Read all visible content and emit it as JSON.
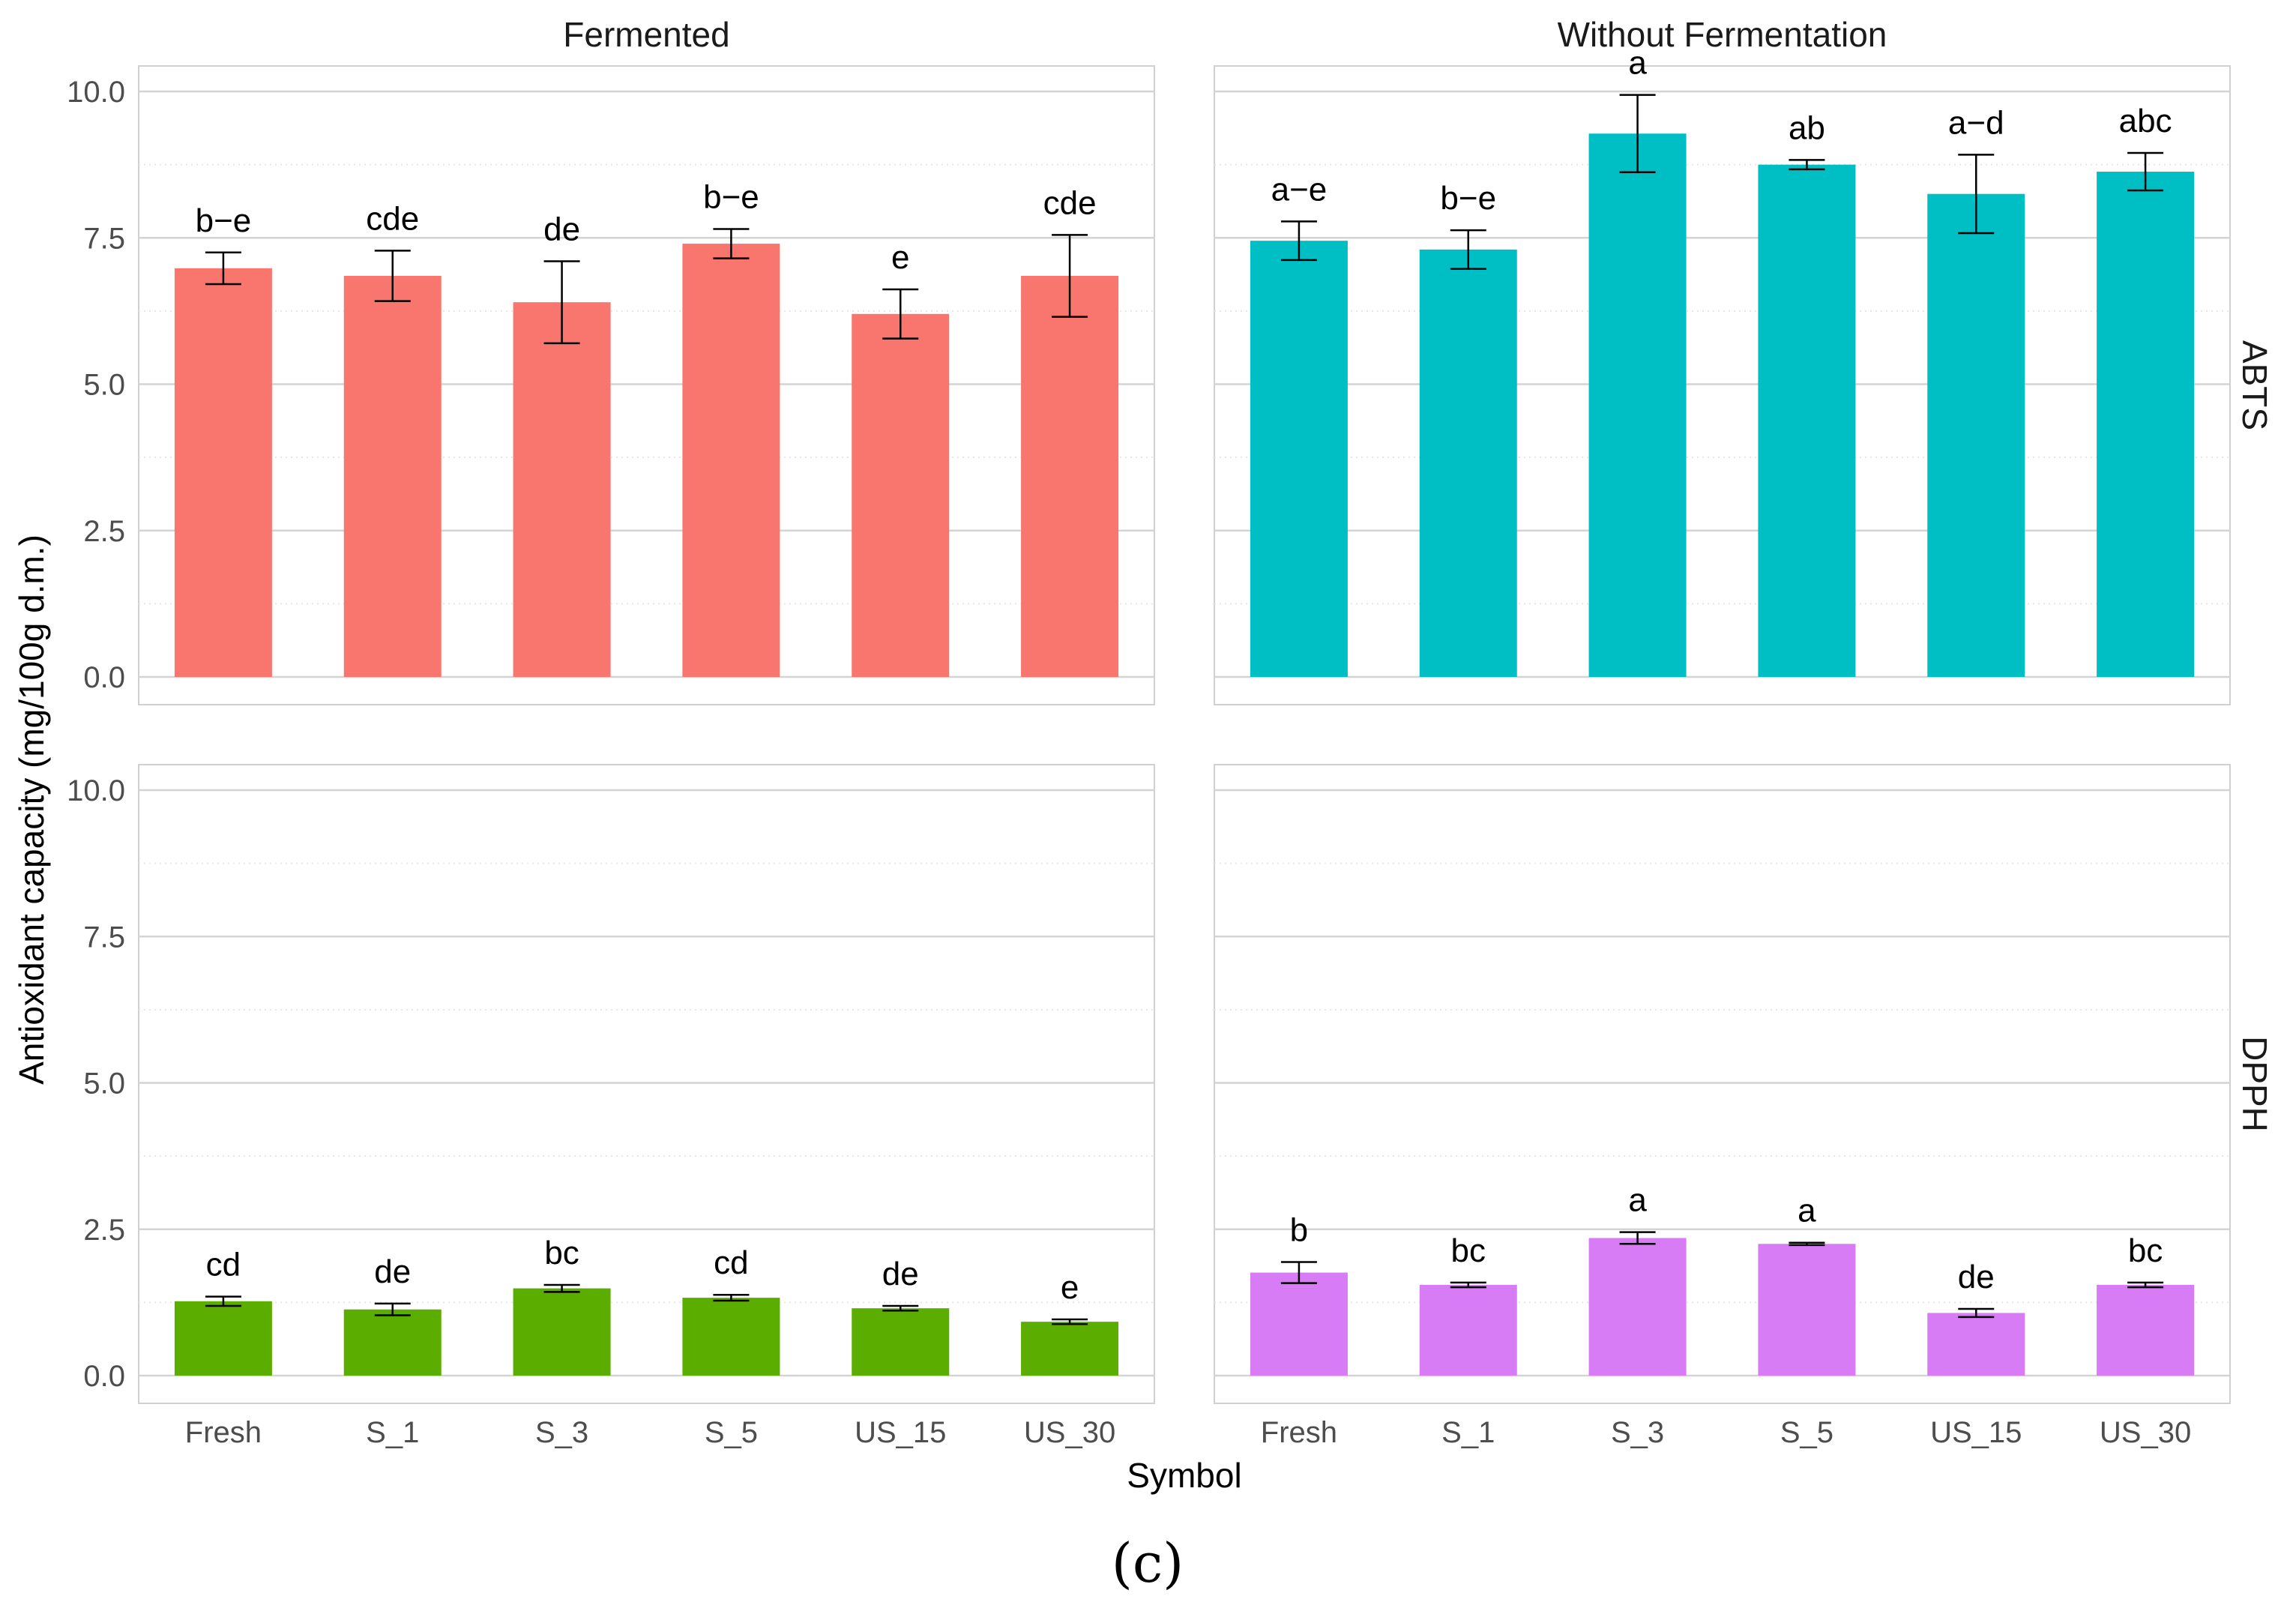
{
  "chart_data": {
    "type": "bar",
    "xlabel": "Symbol",
    "ylabel": "Antioxidant capacity (mg/100g d.m.)",
    "caption": "(c)",
    "ylim": [
      0,
      10.5
    ],
    "yticks": [
      "0.0",
      "2.5",
      "5.0",
      "7.5",
      "10.0"
    ],
    "ytick_values": [
      0,
      2.5,
      5,
      7.5,
      10
    ],
    "categories": [
      "Fresh",
      "S_1",
      "S_3",
      "S_5",
      "US_15",
      "US_30"
    ],
    "columns": [
      "Fermented",
      "Without Fermentation"
    ],
    "rows": [
      "ABTS",
      "DPPH"
    ],
    "grid": true,
    "panels": [
      {
        "column": "Fermented",
        "row": "ABTS",
        "color": "#F8766D",
        "values": [
          6.98,
          6.85,
          6.4,
          7.4,
          6.2,
          6.85
        ],
        "errors": [
          0.27,
          0.43,
          0.7,
          0.25,
          0.42,
          0.7
        ],
        "labels": [
          "b−e",
          "cde",
          "de",
          "b−e",
          "e",
          "cde"
        ]
      },
      {
        "column": "Without Fermentation",
        "row": "ABTS",
        "color": "#00BFC4",
        "values": [
          7.45,
          7.3,
          9.28,
          8.75,
          8.25,
          8.63
        ],
        "errors": [
          0.33,
          0.33,
          0.66,
          0.08,
          0.67,
          0.32
        ],
        "labels": [
          "a−e",
          "b−e",
          "a",
          "ab",
          "a−d",
          "abc"
        ]
      },
      {
        "column": "Fermented",
        "row": "DPPH",
        "color": "#5BAE00",
        "values": [
          1.27,
          1.13,
          1.49,
          1.33,
          1.15,
          0.92
        ],
        "errors": [
          0.08,
          0.1,
          0.06,
          0.05,
          0.04,
          0.04
        ],
        "labels": [
          "cd",
          "de",
          "bc",
          "cd",
          "de",
          "e"
        ]
      },
      {
        "column": "Without Fermentation",
        "row": "DPPH",
        "color": "#D77CF5",
        "values": [
          1.76,
          1.55,
          2.35,
          2.25,
          1.07,
          1.55
        ],
        "errors": [
          0.18,
          0.04,
          0.1,
          0.02,
          0.07,
          0.04
        ],
        "labels": [
          "b",
          "bc",
          "a",
          "a",
          "de",
          "bc"
        ]
      }
    ]
  }
}
